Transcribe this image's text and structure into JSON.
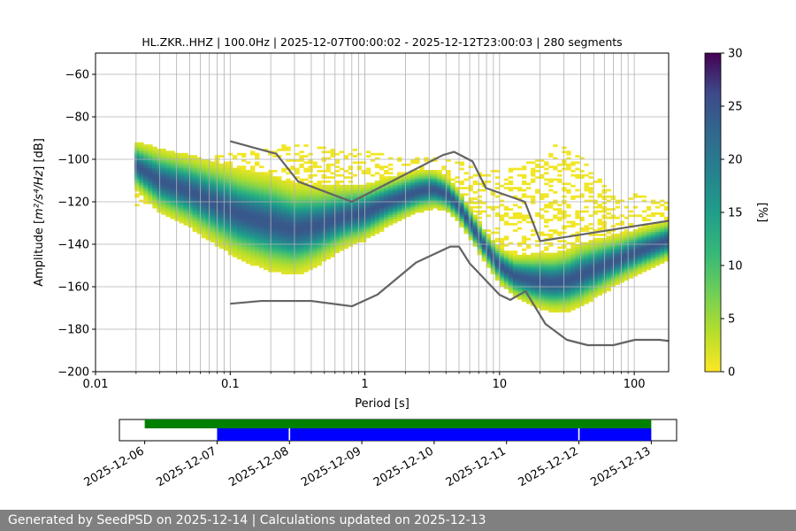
{
  "chart_data": [
    {
      "type": "heatmap",
      "title": "HL.ZKR..HHZ | 100.0Hz | 2025-12-07T00:00:02 - 2025-12-12T23:00:03 | 280 segments",
      "xlabel": "Period [s]",
      "ylabel_main": "Amplitude [",
      "ylabel_math": "m²/s⁴/Hz",
      "ylabel_tail": "] [dB]",
      "xscale": "log",
      "xlim": [
        0.01,
        180
      ],
      "ylim": [
        -200,
        -50
      ],
      "grid": true,
      "x_ticks": [
        {
          "value": 0.01,
          "label": "0.01"
        },
        {
          "value": 0.1,
          "label": "0.1"
        },
        {
          "value": 1,
          "label": "1"
        },
        {
          "value": 10,
          "label": "10"
        },
        {
          "value": 100,
          "label": "100"
        }
      ],
      "y_ticks": [
        {
          "value": -60,
          "label": "−60"
        },
        {
          "value": -80,
          "label": "−80"
        },
        {
          "value": -100,
          "label": "−100"
        },
        {
          "value": -120,
          "label": "−120"
        },
        {
          "value": -140,
          "label": "−140"
        },
        {
          "value": -160,
          "label": "−160"
        },
        {
          "value": -180,
          "label": "−180"
        },
        {
          "value": -200,
          "label": "−200"
        }
      ],
      "colorbar": {
        "label": "[%]",
        "range": [
          0,
          30
        ],
        "colormap": "viridis_r",
        "ticks": [
          {
            "value": 0,
            "label": "0"
          },
          {
            "value": 5,
            "label": "5"
          },
          {
            "value": 10,
            "label": "10"
          },
          {
            "value": 15,
            "label": "15"
          },
          {
            "value": 20,
            "label": "20"
          },
          {
            "value": 25,
            "label": "25"
          },
          {
            "value": 30,
            "label": "30"
          }
        ]
      },
      "ppsd_mode": [
        [
          0.02,
          -103
        ],
        [
          0.03,
          -110
        ],
        [
          0.05,
          -115
        ],
        [
          0.08,
          -121
        ],
        [
          0.12,
          -126
        ],
        [
          0.2,
          -130
        ],
        [
          0.3,
          -133
        ],
        [
          0.45,
          -131
        ],
        [
          0.7,
          -127
        ],
        [
          1,
          -125
        ],
        [
          1.5,
          -120
        ],
        [
          2.5,
          -115
        ],
        [
          3.2,
          -114
        ],
        [
          4,
          -116
        ],
        [
          5,
          -122
        ],
        [
          6,
          -130
        ],
        [
          8,
          -142
        ],
        [
          10,
          -150
        ],
        [
          13,
          -155
        ],
        [
          18,
          -157
        ],
        [
          25,
          -158
        ],
        [
          32,
          -157
        ],
        [
          45,
          -153
        ],
        [
          70,
          -148
        ],
        [
          110,
          -143
        ],
        [
          180,
          -138
        ]
      ],
      "ppsd_spread": [
        [
          0.02,
          6
        ],
        [
          0.03,
          8
        ],
        [
          0.05,
          9
        ],
        [
          0.1,
          11
        ],
        [
          0.2,
          12
        ],
        [
          0.35,
          11
        ],
        [
          0.7,
          8
        ],
        [
          1.5,
          6
        ],
        [
          3,
          5
        ],
        [
          5,
          4
        ],
        [
          8,
          4
        ],
        [
          12,
          5
        ],
        [
          20,
          7
        ],
        [
          40,
          8
        ],
        [
          80,
          6
        ],
        [
          180,
          5
        ]
      ],
      "scatter_envelope": {
        "upper": [
          [
            0.03,
            -99
          ],
          [
            0.06,
            -100
          ],
          [
            0.1,
            -97
          ],
          [
            0.2,
            -94
          ],
          [
            0.3,
            -93
          ],
          [
            0.5,
            -94
          ],
          [
            0.8,
            -95
          ],
          [
            1.2,
            -97
          ],
          [
            2,
            -98
          ],
          [
            3,
            -99
          ],
          [
            5,
            -101
          ],
          [
            8,
            -105
          ],
          [
            12,
            -104
          ],
          [
            20,
            -99
          ],
          [
            25,
            -93
          ],
          [
            35,
            -95
          ],
          [
            50,
            -105
          ],
          [
            80,
            -115
          ],
          [
            180,
            -120
          ]
        ],
        "lower": [
          [
            0.03,
            -122
          ],
          [
            0.1,
            -134
          ],
          [
            0.2,
            -144
          ],
          [
            0.3,
            -148
          ],
          [
            0.5,
            -143
          ],
          [
            0.8,
            -132
          ],
          [
            1.5,
            -123
          ],
          [
            3,
            -118
          ],
          [
            6,
            -130
          ],
          [
            10,
            -152
          ],
          [
            15,
            -158
          ],
          [
            20,
            -160
          ],
          [
            40,
            -158
          ],
          [
            80,
            -152
          ],
          [
            180,
            -144
          ]
        ]
      },
      "noise_models": [
        {
          "name": "high",
          "color": "#646464",
          "points": [
            [
              0.1,
              -91.5
            ],
            [
              0.22,
              -97.4
            ],
            [
              0.32,
              -110.5
            ],
            [
              0.8,
              -120
            ],
            [
              3.8,
              -98
            ],
            [
              4.6,
              -96.5
            ],
            [
              6.3,
              -101
            ],
            [
              7.9,
              -113.5
            ],
            [
              15.4,
              -120
            ],
            [
              20,
              -138.5
            ],
            [
              354.8,
              -126
            ]
          ]
        },
        {
          "name": "low",
          "color": "#646464",
          "points": [
            [
              0.1,
              -168
            ],
            [
              0.17,
              -166.7
            ],
            [
              0.4,
              -166.7
            ],
            [
              0.8,
              -169.2
            ],
            [
              1.24,
              -163.7
            ],
            [
              2.4,
              -148.6
            ],
            [
              4.3,
              -141.1
            ],
            [
              5,
              -141.1
            ],
            [
              6,
              -149
            ],
            [
              10,
              -163.8
            ],
            [
              12,
              -166.2
            ],
            [
              15.6,
              -162.1
            ],
            [
              21.9,
              -177.5
            ],
            [
              31.6,
              -185
            ],
            [
              45,
              -187.5
            ],
            [
              70,
              -187.5
            ],
            [
              101,
              -185
            ],
            [
              154,
              -185
            ],
            [
              328,
              -187.5
            ]
          ]
        }
      ]
    },
    {
      "type": "timeline",
      "x_ticks": [
        "2025-12-06",
        "2025-12-07",
        "2025-12-08",
        "2025-12-09",
        "2025-12-10",
        "2025-12-11",
        "2025-12-12",
        "2025-12-13"
      ],
      "xlim_days": [
        -0.35,
        7.35
      ],
      "coverage_green": [
        [
          0,
          7
        ]
      ],
      "coverage_blue": [
        [
          1,
          1.99
        ],
        [
          2.01,
          5.99
        ],
        [
          6.01,
          7
        ]
      ],
      "colors": {
        "green": "#008000",
        "blue": "#0000ff"
      }
    }
  ],
  "footer": {
    "text": "Generated by SeedPSD on 2025-12-14 | Calculations updated on 2025-12-13"
  }
}
